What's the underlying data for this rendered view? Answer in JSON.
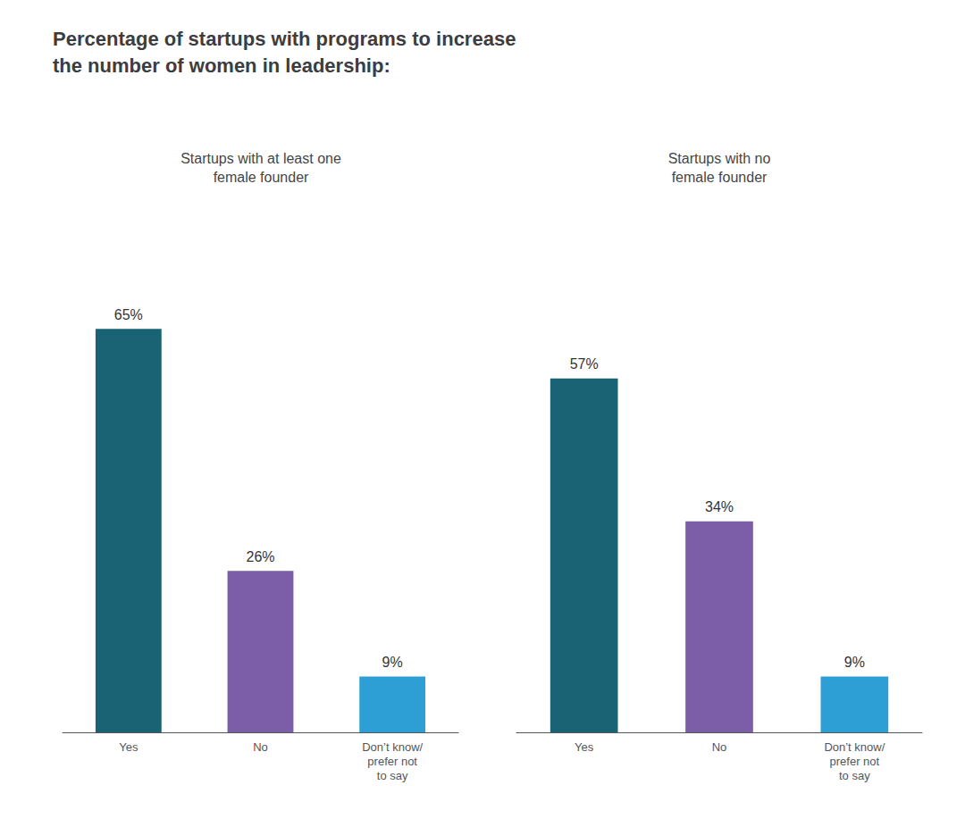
{
  "chart_data": {
    "type": "bar",
    "title": "Percentage of startups with programs to increase\nthe number of women in leadership:",
    "categories": [
      "Yes",
      "No",
      "Don’t know/\nprefer not\nto say"
    ],
    "series": [
      {
        "name": "Startups with at least one\nfemale founder",
        "values": [
          65,
          26,
          9
        ],
        "value_labels": [
          "65%",
          "26%",
          "9%"
        ]
      },
      {
        "name": "Startups with no\nfemale founder",
        "values": [
          57,
          34,
          9
        ],
        "value_labels": [
          "57%",
          "34%",
          "9%"
        ]
      }
    ],
    "colors": [
      "#1a6375",
      "#7b5ea7",
      "#2e9fd4"
    ],
    "ylim": [
      0,
      82
    ],
    "data_labels": true,
    "tick_labels": "x",
    "grid": false
  }
}
